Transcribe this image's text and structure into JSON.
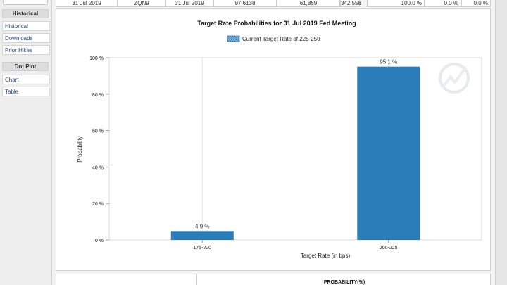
{
  "sidebar": {
    "sections": [
      {
        "header": "Historical",
        "items": [
          "Historical",
          "Downloads",
          "Prior Hikes"
        ]
      },
      {
        "header": "Dot Plot",
        "items": [
          "Chart",
          "Table"
        ]
      }
    ]
  },
  "top_row": {
    "cells": [
      "31 Jul 2019",
      "ZQN9",
      "31 Jul 2019",
      "97.6138",
      "61,859",
      "342,558"
    ],
    "prob_cells": [
      "100.0 %",
      "0.0 %",
      "0.0 %"
    ]
  },
  "bottom_table": {
    "header": "PROBABILITY(%)"
  },
  "chart_data": {
    "type": "bar",
    "title": "Target Rate Probabilities for 31 Jul 2019 Fed Meeting",
    "legend": "Current Target Rate of 225-250",
    "categories": [
      "175-200",
      "200-225"
    ],
    "values": [
      4.9,
      95.1
    ],
    "data_labels": [
      "4.9 %",
      "95.1 %"
    ],
    "xlabel": "Target Rate (in bps)",
    "ylabel": "Probability",
    "ylim": [
      0,
      100
    ],
    "yticks": [
      "0 %",
      "20 %",
      "40 %",
      "60 %",
      "80 %",
      "100 %"
    ],
    "bar_color": "#2a7db8"
  }
}
